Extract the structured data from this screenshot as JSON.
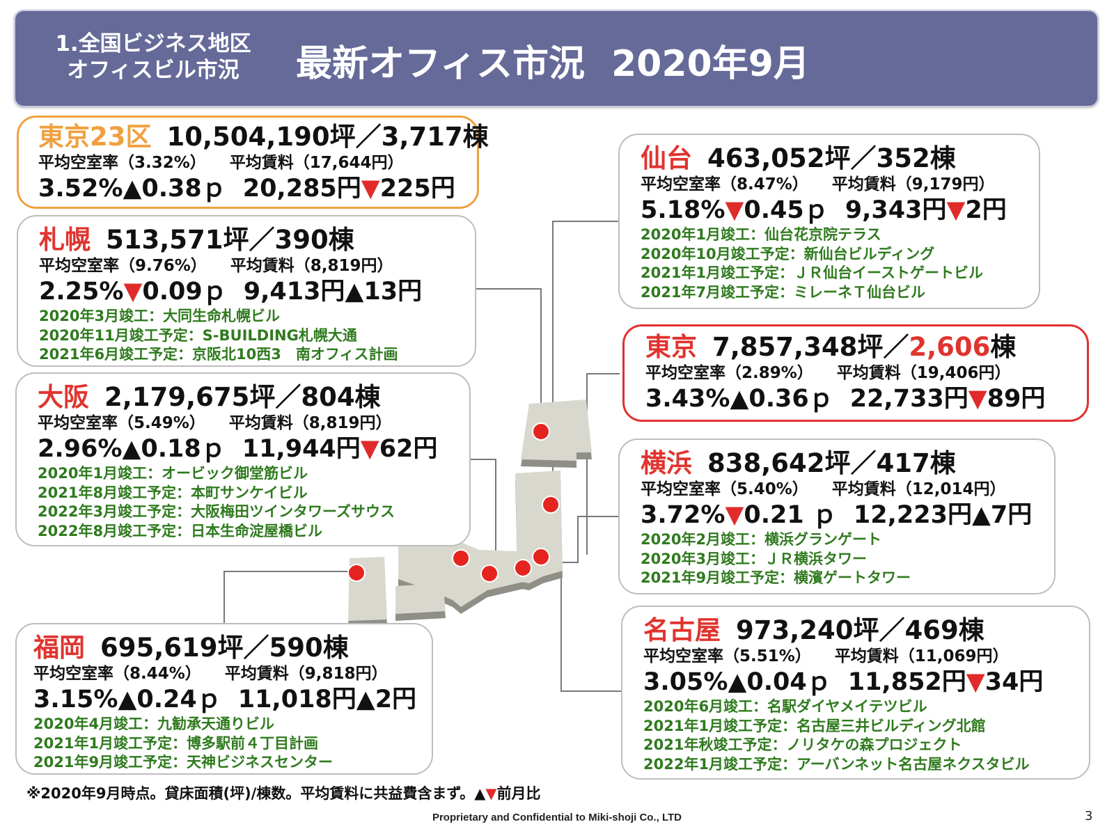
{
  "header": {
    "sub_line1": "1.全国ビジネス地区",
    "sub_line2": "オフィスビル市況",
    "main_title": "最新オフィス市況",
    "main_date": "2020年9月"
  },
  "cards": {
    "tokyo23": {
      "city": "東京23区",
      "summary": "10,504,190坪／3,717棟",
      "vacancy_label": "平均空室率（3.32%）",
      "rent_label": "平均賃料（17,644円）",
      "vacancy": "3.52%",
      "vacancy_dir": "▲",
      "vacancy_change": "0.38ｐ",
      "rent": "20,285円",
      "rent_dir": "▼",
      "rent_change": "225円"
    },
    "sapporo": {
      "city": "札幌",
      "summary": "513,571坪／390棟",
      "vacancy_label": "平均空室率（9.76%）",
      "rent_label": "平均賃料（8,819円）",
      "vacancy": "2.25%",
      "vacancy_dir": "▼",
      "vacancy_change": "0.09ｐ",
      "rent": "9,413円",
      "rent_dir": "▲",
      "rent_change": "13円",
      "projects": [
        "2020年3月竣工：大同生命札幌ビル",
        "2020年11月竣工予定：S-BUILDING札幌大通",
        "2021年6月竣工予定：京阪北10西3　南オフィス計画"
      ]
    },
    "osaka": {
      "city": "大阪",
      "summary": "2,179,675坪／804棟",
      "vacancy_label": "平均空室率（5.49%）",
      "rent_label": "平均賃料（8,819円）",
      "vacancy": "2.96%",
      "vacancy_dir": "▲",
      "vacancy_change": "0.18ｐ",
      "rent": "11,944円",
      "rent_dir": "▼",
      "rent_change": "62円",
      "projects": [
        "2020年1月竣工：オービック御堂筋ビル",
        "2021年8月竣工予定：本町サンケイビル",
        "2022年3月竣工予定：大阪梅田ツインタワーズサウス",
        "2022年8月竣工予定：日本生命淀屋橋ビル"
      ]
    },
    "fukuoka": {
      "city": "福岡",
      "summary": "695,619坪／590棟",
      "vacancy_label": "平均空室率（8.44%）",
      "rent_label": "平均賃料（9,818円）",
      "vacancy": "3.15%",
      "vacancy_dir": "▲",
      "vacancy_change": "0.24ｐ",
      "rent": "11,018円",
      "rent_dir": "▲",
      "rent_change": "2円",
      "projects": [
        "2020年4月竣工：九勧承天通りビル",
        "2021年1月竣工予定：博多駅前４丁目計画",
        "2021年9月竣工予定：天神ビジネスセンター"
      ]
    },
    "sendai": {
      "city": "仙台",
      "summary": "463,052坪／352棟",
      "vacancy_label": "平均空室率（8.47%）",
      "rent_label": "平均賃料（9,179円）",
      "vacancy": "5.18%",
      "vacancy_dir": "▼",
      "vacancy_change": "0.45ｐ",
      "rent": "9,343円",
      "rent_dir": "▼",
      "rent_change": "2円",
      "projects": [
        "2020年1月竣工：仙台花京院テラス",
        "2020年10月竣工予定：新仙台ビルディング",
        "2021年1月竣工予定：ＪＲ仙台イーストゲートビル",
        "2021年7月竣工予定：ミレーネＴ仙台ビル"
      ]
    },
    "tokyo": {
      "city": "東京",
      "summary_area": "7,857,348坪／",
      "summary_count": "2,606",
      "summary_unit": "棟",
      "vacancy_label": "平均空室率（2.89%）",
      "rent_label": "平均賃料（19,406円）",
      "vacancy": "3.43%",
      "vacancy_dir": "▲",
      "vacancy_change": "0.36ｐ",
      "rent": "22,733円",
      "rent_dir": "▼",
      "rent_change": "89円"
    },
    "yokohama": {
      "city": "横浜",
      "summary": "838,642坪／417棟",
      "vacancy_label": "平均空室率（5.40%）",
      "rent_label": "平均賃料（12,014円）",
      "vacancy": "3.72%",
      "vacancy_dir": "▼",
      "vacancy_change": "0.21 ｐ",
      "rent": "12,223円",
      "rent_dir": "▲",
      "rent_change": "7円",
      "projects": [
        "2020年2月竣工：横浜グランゲート",
        "2020年3月竣工：ＪＲ横浜タワー",
        "2021年9月竣工予定：横濱ゲートタワー"
      ]
    },
    "nagoya": {
      "city": "名古屋",
      "summary": "973,240坪／469棟",
      "vacancy_label": "平均空室率（5.51%）",
      "rent_label": "平均賃料（11,069円）",
      "vacancy": "3.05%",
      "vacancy_dir": "▲",
      "vacancy_change": "0.04ｐ",
      "rent": "11,852円",
      "rent_dir": "▼",
      "rent_change": "34円",
      "projects": [
        "2020年6月竣工：名駅ダイヤメイテツビル",
        "2021年1月竣工予定：名古屋三井ビルディング北館",
        "2021年秋竣工予定：ノリタケの森プロジェクト",
        "2022年1月竣工予定：アーバンネット名古屋ネクスタビル"
      ]
    }
  },
  "footnote": {
    "text": "※2020年9月時点。貸床面積(坪)/棟数。平均賃料に共益費含まず。",
    "up": "▲",
    "down": "▼",
    "suffix": "前月比"
  },
  "confidential": "Proprietary and Confidential to Miki-shoji Co., LTD",
  "page_number": "3",
  "colors": {
    "header_bg": "#656a98",
    "city_red": "#e0342f",
    "tokyo23_orange": "#f0a040",
    "project_green": "#2f7a1e",
    "down_arrow_red": "#e02b2b",
    "marker_red": "#e5231f",
    "map_gray": "#d8d8cf"
  }
}
